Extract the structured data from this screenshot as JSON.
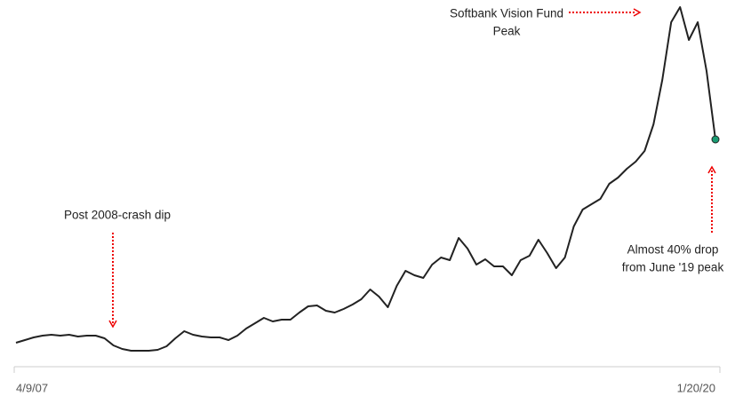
{
  "chart_data": {
    "type": "line",
    "categories": [
      "4/9/07",
      null,
      null,
      null,
      null,
      null,
      null,
      null,
      null,
      null,
      null,
      null,
      null,
      null,
      null,
      null,
      null,
      null,
      null,
      null,
      null,
      null,
      null,
      null,
      null,
      null,
      null,
      null,
      null,
      null,
      null,
      null,
      null,
      null,
      null,
      null,
      null,
      null,
      null,
      null,
      null,
      null,
      null,
      null,
      null,
      null,
      null,
      null,
      null,
      null,
      null,
      null,
      null,
      null,
      null,
      null,
      null,
      null,
      null,
      null,
      null,
      null,
      null,
      null,
      null,
      null,
      null,
      null,
      null,
      null,
      null,
      null,
      null,
      null,
      null,
      null,
      null,
      null,
      null,
      "1/20/20"
    ],
    "series": [
      {
        "color": "#222222",
        "values": [
          6,
          6.75,
          7.5,
          8,
          8.25,
          8,
          8.25,
          7.75,
          8,
          8,
          7.25,
          5.25,
          4.25,
          3.75,
          3.75,
          3.75,
          4,
          5,
          7.25,
          9.25,
          8.25,
          7.75,
          7.5,
          7.5,
          6.75,
          8,
          10,
          11.5,
          13,
          12,
          12.5,
          12.5,
          14.5,
          16.25,
          16.5,
          15,
          14.5,
          15.5,
          16.75,
          18.25,
          21,
          19,
          16,
          22,
          26.25,
          25,
          24.25,
          28,
          30,
          29.25,
          35.5,
          32.5,
          28,
          29.5,
          27.5,
          27.5,
          25,
          29.25,
          30.5,
          35,
          31.25,
          27,
          30,
          38.75,
          43.5,
          45,
          46.5,
          50.75,
          52.5,
          55,
          57,
          60,
          67.5,
          80,
          96.25,
          100.5,
          91.25,
          96.25,
          82.5,
          63.25
        ]
      }
    ],
    "end_marker_color": "#1a9c73",
    "ylim": [
      0,
      102.5
    ],
    "annotations": [
      {
        "lines": [
          "Softbank Vision Fund",
          "Peak"
        ]
      },
      {
        "lines": [
          "Post 2008-crash dip"
        ]
      },
      {
        "lines": [
          "Almost 40% drop",
          "from June '19 peak"
        ]
      }
    ]
  }
}
